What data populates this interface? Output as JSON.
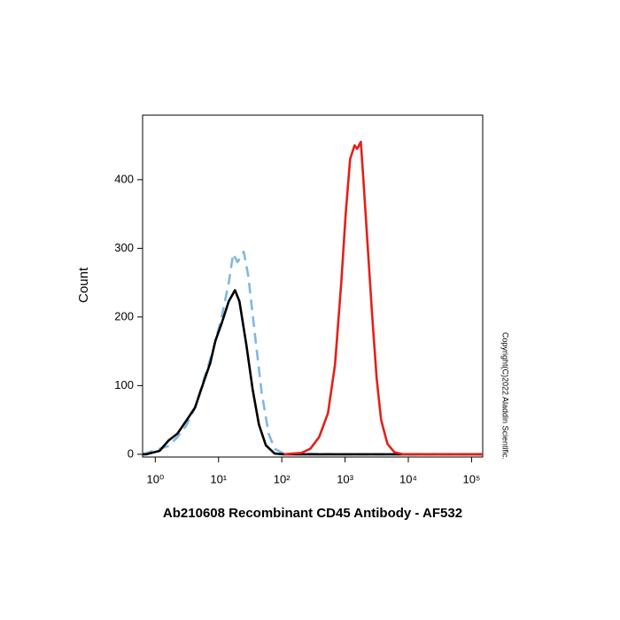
{
  "chart_data": {
    "type": "line",
    "title": "Ab210608 Recombinant CD45 Antibody - AF532",
    "ylabel": "Count",
    "annotation": "Copyright(C)2022 Aladdin Scientific.",
    "xscale": "log",
    "xlim": [
      0.63,
      150000
    ],
    "ylim": [
      -4,
      494
    ],
    "xticks": [
      {
        "value": 1,
        "label": "10⁰"
      },
      {
        "value": 10,
        "label": "10¹"
      },
      {
        "value": 100,
        "label": "10²"
      },
      {
        "value": 1000,
        "label": "10³"
      },
      {
        "value": 10000,
        "label": "10⁴"
      },
      {
        "value": 100000,
        "label": "10⁵"
      }
    ],
    "yticks": [
      0,
      100,
      200,
      300,
      400
    ],
    "series": [
      {
        "color": "#7fb8e6",
        "dash": true,
        "x": [
          0.63,
          1.62,
          2.24,
          3.1,
          4.25,
          5.9,
          8.1,
          11.2,
          14.5,
          17,
          20,
          25,
          29.5,
          38,
          48,
          62,
          77,
          107,
          1000,
          150000
        ],
        "values": [
          0,
          12,
          25,
          42,
          68,
          110,
          150,
          200,
          250,
          292,
          280,
          295,
          260,
          170,
          90,
          30,
          8,
          1,
          0,
          0
        ]
      },
      {
        "color": "#000000",
        "dash": false,
        "x": [
          0.63,
          0.72,
          1.17,
          1.62,
          2.24,
          3.1,
          4.25,
          5.9,
          7.4,
          8.9,
          11.2,
          14.5,
          18.2,
          21.4,
          27.6,
          34.7,
          43.6,
          56,
          77,
          107,
          1000,
          150000
        ],
        "values": [
          0,
          0,
          5,
          20,
          30,
          49,
          68,
          107,
          133,
          165,
          191,
          223,
          239,
          223,
          159,
          94,
          43,
          13,
          1,
          0,
          0,
          0
        ]
      },
      {
        "color": "#e3201b",
        "dash": false,
        "x": [
          107,
          204,
          282,
          389,
          537,
          692,
          871,
          1023,
          1202,
          1413,
          1549,
          1778,
          1950,
          2290,
          2690,
          3160,
          3720,
          4680,
          6030,
          8320,
          150000
        ],
        "values": [
          0,
          2,
          8,
          25,
          60,
          130,
          250,
          350,
          430,
          450,
          445,
          455,
          400,
          300,
          200,
          110,
          50,
          15,
          3,
          0,
          0
        ]
      }
    ]
  }
}
